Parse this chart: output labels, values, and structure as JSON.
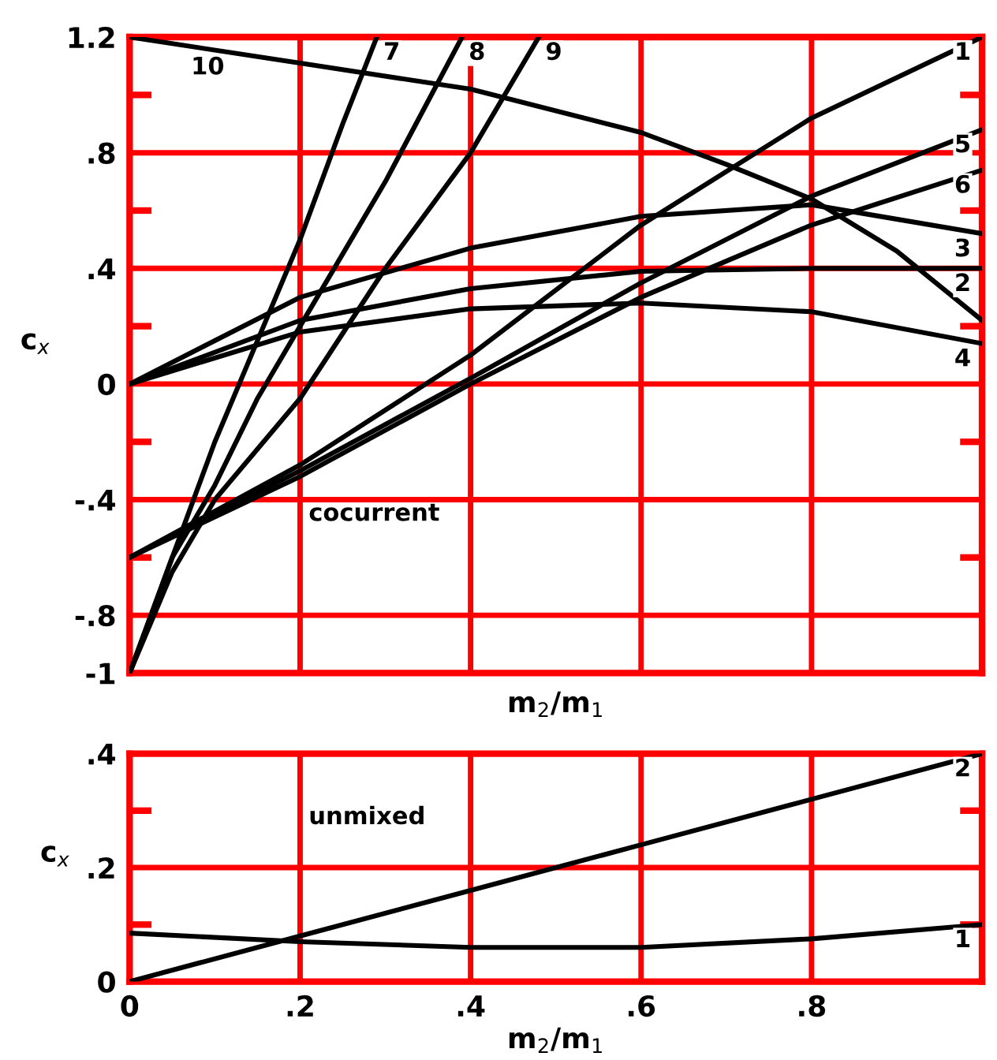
{
  "chart_data": [
    {
      "type": "line",
      "xlabel": "m$_{2}$/m$_{1}$",
      "ylabel": "c$_{x}$",
      "xlim": [
        0,
        1
      ],
      "ylim": [
        -1,
        1.2
      ],
      "xticks": [
        0,
        0.2,
        0.4,
        0.6,
        0.8
      ],
      "yticks": [
        {
          "value": -1,
          "label": "-1"
        },
        {
          "value": -0.8,
          "label": "-.8"
        },
        {
          "value": -0.6,
          "label": null
        },
        {
          "value": -0.4,
          "label": "-.4"
        },
        {
          "value": -0.2,
          "label": null
        },
        0,
        {
          "value": 0.2,
          "label": null
        },
        {
          "value": 0.4,
          "label": ".4"
        },
        {
          "value": 0.6,
          "label": null
        },
        {
          "value": 0.8,
          "label": ".8"
        },
        {
          "value": 1.0,
          "label": null
        },
        {
          "value": 1.2,
          "label": "1.2"
        }
      ],
      "tick_labels": "y",
      "grid": true,
      "legend": false,
      "marker": "none",
      "line_style": "solid",
      "series": [
        {
          "name": "1",
          "color": "#000000",
          "x": [
            0,
            0.2,
            0.4,
            0.6,
            0.8,
            1.0
          ],
          "values": [
            -0.6,
            -0.28,
            0.1,
            0.55,
            0.92,
            1.2
          ]
        },
        {
          "name": "2",
          "color": "#000000",
          "x": [
            0,
            0.2,
            0.4,
            0.6,
            0.8,
            1.0
          ],
          "values": [
            0,
            0.22,
            0.33,
            0.39,
            0.4,
            0.4
          ]
        },
        {
          "name": "3",
          "color": "#000000",
          "x": [
            0,
            0.2,
            0.4,
            0.6,
            0.8,
            1.0
          ],
          "values": [
            0,
            0.3,
            0.47,
            0.58,
            0.62,
            0.52
          ]
        },
        {
          "name": "4",
          "color": "#000000",
          "x": [
            0,
            0.2,
            0.4,
            0.6,
            0.8,
            1.0
          ],
          "values": [
            0,
            0.18,
            0.26,
            0.28,
            0.25,
            0.14
          ]
        },
        {
          "name": "5",
          "color": "#000000",
          "x": [
            0,
            0.2,
            0.4,
            0.6,
            0.8,
            1.0
          ],
          "values": [
            -0.6,
            -0.3,
            0.02,
            0.35,
            0.65,
            0.88
          ]
        },
        {
          "name": "6",
          "color": "#000000",
          "x": [
            0,
            0.2,
            0.4,
            0.6,
            0.8,
            1.0
          ],
          "values": [
            -0.6,
            -0.32,
            0.0,
            0.3,
            0.55,
            0.74
          ]
        },
        {
          "name": "7",
          "color": "#000000",
          "x": [
            0,
            0.05,
            0.1,
            0.15,
            0.2,
            0.25,
            0.29
          ],
          "values": [
            -1,
            -0.6,
            -0.2,
            0.15,
            0.5,
            0.9,
            1.2
          ]
        },
        {
          "name": "8",
          "color": "#000000",
          "x": [
            0,
            0.05,
            0.1,
            0.15,
            0.2,
            0.3,
            0.39
          ],
          "values": [
            -1,
            -0.6,
            -0.35,
            -0.05,
            0.2,
            0.7,
            1.2
          ]
        },
        {
          "name": "9",
          "color": "#000000",
          "x": [
            0,
            0.05,
            0.1,
            0.2,
            0.3,
            0.4,
            0.48
          ],
          "values": [
            -1,
            -0.65,
            -0.4,
            -0.05,
            0.4,
            0.8,
            1.2
          ]
        },
        {
          "name": "10",
          "color": "#000000",
          "x": [
            0,
            0.2,
            0.4,
            0.6,
            0.7,
            0.8,
            0.9,
            1.0
          ],
          "values": [
            1.2,
            1.11,
            1.02,
            0.87,
            0.76,
            0.64,
            0.46,
            0.22
          ]
        }
      ],
      "annotations": [
        "cocurrent"
      ]
    },
    {
      "type": "line",
      "xlabel": "m$_{2}$/m$_{1}$",
      "ylabel": "c$_{x}$",
      "xlim": [
        0,
        1
      ],
      "ylim": [
        0,
        0.4
      ],
      "xticks": [
        0,
        {
          "value": 0.2,
          "label": ".2"
        },
        {
          "value": 0.4,
          "label": ".4"
        },
        {
          "value": 0.6,
          "label": ".6"
        },
        {
          "value": 0.8,
          "label": ".8"
        }
      ],
      "yticks": [
        0,
        {
          "value": 0.1,
          "label": null
        },
        {
          "value": 0.2,
          "label": ".2"
        },
        {
          "value": 0.3,
          "label": null
        },
        {
          "value": 0.4,
          "label": ".4"
        }
      ],
      "grid": true,
      "legend": false,
      "marker": "none",
      "line_style": "solid",
      "series": [
        {
          "name": "1",
          "color": "#000000",
          "x": [
            0,
            0.2,
            0.4,
            0.6,
            0.8,
            1.0
          ],
          "values": [
            0.085,
            0.07,
            0.06,
            0.06,
            0.075,
            0.1
          ]
        },
        {
          "name": "2",
          "color": "#000000",
          "x": [
            0,
            0.2,
            0.4,
            0.6,
            0.8,
            1.0
          ],
          "values": [
            0,
            0.08,
            0.16,
            0.24,
            0.32,
            0.4
          ]
        }
      ],
      "annotations": [
        "unmixed"
      ]
    }
  ]
}
